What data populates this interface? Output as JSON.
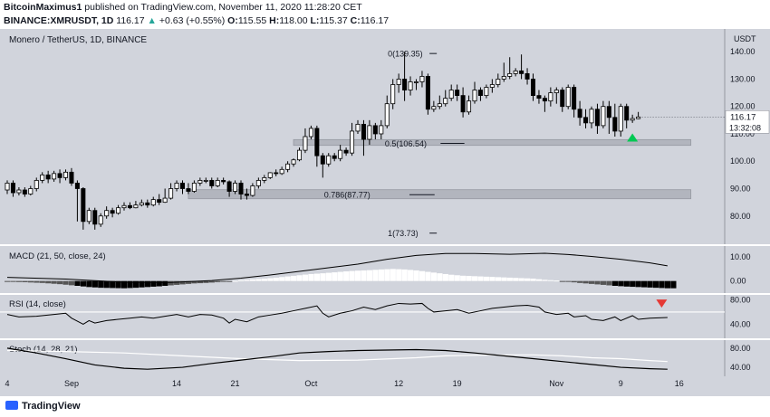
{
  "header": {
    "author": "BitcoinMaximus1",
    "published_text": "published on TradingView.com, November 11, 2020 11:28:20 CET",
    "symbol": "BINANCE:XMRUSDT, 1D",
    "last_price": "116.17",
    "change_arrow": "▲",
    "change_text": "+0.63 (+0.55%)",
    "ohlc": {
      "o_label": "O:",
      "o": "115.55",
      "h_label": "H:",
      "h": "118.00",
      "l_label": "L:",
      "l": "115.37",
      "c_label": "C:",
      "c": "116.17"
    }
  },
  "footer": {
    "brand": "TradingView"
  },
  "colors": {
    "pane_bg": "#d1d4dc",
    "candle_up": "#ffffff",
    "candle_down": "#000000",
    "fib_zone": "#b2b5be",
    "up_arrow": "#00c853",
    "down_arrow": "#e53935"
  },
  "chart_data": {
    "type": "candlestick",
    "title": "Monero / TetherUS, 1D, BINANCE",
    "currency_label": "USDT",
    "price_axis": {
      "ticks": [
        80,
        90,
        100,
        110,
        120,
        130,
        140
      ],
      "ylim": [
        71,
        147
      ]
    },
    "last_price_label": "116.17",
    "countdown_label": "13:32:08",
    "x_tick_labels": [
      {
        "label": "4",
        "index": 0
      },
      {
        "label": "Sep",
        "index": 11
      },
      {
        "label": "14",
        "index": 29
      },
      {
        "label": "21",
        "index": 39
      },
      {
        "label": "Oct",
        "index": 52
      },
      {
        "label": "12",
        "index": 67
      },
      {
        "label": "19",
        "index": 77
      },
      {
        "label": "Nov",
        "index": 94
      },
      {
        "label": "9",
        "index": 105
      },
      {
        "label": "16",
        "index": 115
      }
    ],
    "fib_levels": [
      {
        "label": "0(139.35)",
        "value": 139.35,
        "zone": false,
        "x_start": 67,
        "x_end": 75
      },
      {
        "label": "0.5(106.54)",
        "value": 106.54,
        "zone": true,
        "zone_low": 105.8,
        "zone_high": 107.9,
        "x_start": 49,
        "x_end": 117
      },
      {
        "label": "0.786(87.77)",
        "value": 87.77,
        "zone": true,
        "zone_low": 86.3,
        "zone_high": 89.6,
        "x_start": 31,
        "x_end": 117
      },
      {
        "label": "1(73.73)",
        "value": 73.73,
        "zone": false,
        "x_start": 67,
        "x_end": 75
      }
    ],
    "candles": [
      [
        89.5,
        92,
        88,
        93
      ],
      [
        92,
        88.5,
        87,
        93
      ],
      [
        88.5,
        89.5,
        87.5,
        90.5
      ],
      [
        89.5,
        88,
        87,
        90.5
      ],
      [
        88,
        90,
        87.5,
        91
      ],
      [
        90,
        93,
        89,
        94
      ],
      [
        93,
        95,
        92,
        96
      ],
      [
        95,
        93.5,
        92,
        96.5
      ],
      [
        93.5,
        95.5,
        92.5,
        96.5
      ],
      [
        95.5,
        94,
        92,
        97
      ],
      [
        94,
        96,
        93,
        97
      ],
      [
        96,
        92,
        91,
        97.5
      ],
      [
        92,
        90,
        78,
        93
      ],
      [
        90,
        78,
        75,
        90.5
      ],
      [
        78,
        82,
        77,
        83
      ],
      [
        82,
        77,
        75,
        83
      ],
      [
        77,
        80,
        76,
        81
      ],
      [
        80,
        82,
        79,
        83.5
      ],
      [
        82,
        81,
        79.5,
        83
      ],
      [
        81,
        83,
        80.5,
        84
      ],
      [
        83,
        83.8,
        82,
        85
      ],
      [
        83.8,
        83,
        82.5,
        85
      ],
      [
        83,
        84,
        82.8,
        85.5
      ],
      [
        84,
        84.8,
        83.5,
        86
      ],
      [
        84.8,
        84,
        83,
        86
      ],
      [
        84,
        86,
        83.5,
        87
      ],
      [
        86,
        85,
        84,
        88
      ],
      [
        85,
        86.5,
        84.8,
        90
      ],
      [
        86.5,
        90,
        86,
        92
      ],
      [
        90,
        92,
        89,
        93
      ],
      [
        92,
        90,
        88,
        93
      ],
      [
        90,
        89,
        88,
        92
      ],
      [
        89,
        92,
        88.5,
        93
      ],
      [
        92,
        93,
        91,
        94
      ],
      [
        93,
        93,
        92,
        94
      ],
      [
        93,
        91,
        90,
        94
      ],
      [
        91,
        93,
        90.5,
        94
      ],
      [
        93,
        92.5,
        91.5,
        94
      ],
      [
        92.5,
        89,
        87,
        93
      ],
      [
        89,
        92,
        88,
        93
      ],
      [
        92,
        88,
        86,
        93
      ],
      [
        88,
        87.5,
        86,
        90
      ],
      [
        87.5,
        91,
        87,
        92
      ],
      [
        91,
        93,
        90,
        94
      ],
      [
        93,
        94,
        92,
        95
      ],
      [
        94,
        95.8,
        93.5,
        96
      ],
      [
        95.8,
        95.5,
        94.5,
        97
      ],
      [
        95.5,
        97,
        95,
        98
      ],
      [
        97,
        99,
        96,
        100
      ],
      [
        99,
        100.5,
        98,
        101
      ],
      [
        100.5,
        104,
        100,
        105
      ],
      [
        104,
        109,
        103,
        112
      ],
      [
        109,
        112,
        108,
        113
      ],
      [
        112,
        102,
        98,
        113
      ],
      [
        102,
        99,
        94,
        103
      ],
      [
        99,
        102,
        98,
        103
      ],
      [
        102,
        101,
        100,
        103
      ],
      [
        101,
        104,
        100,
        106
      ],
      [
        104,
        103,
        102,
        105
      ],
      [
        103,
        111,
        102,
        114
      ],
      [
        111,
        113.5,
        110,
        115
      ],
      [
        113.5,
        108,
        102,
        115
      ],
      [
        108,
        113,
        106,
        115
      ],
      [
        113,
        110,
        108,
        114
      ],
      [
        110,
        113,
        108,
        115
      ],
      [
        113,
        121,
        112,
        124
      ],
      [
        121,
        128,
        119,
        130
      ],
      [
        128,
        130,
        125,
        132
      ],
      [
        130,
        126,
        122,
        140
      ],
      [
        126,
        129,
        124,
        131
      ],
      [
        129,
        129,
        126,
        130
      ],
      [
        129,
        131,
        127,
        133
      ],
      [
        131,
        119,
        117,
        132
      ],
      [
        119,
        120,
        118,
        122
      ],
      [
        120,
        121,
        119,
        124
      ],
      [
        121,
        123,
        120,
        126
      ],
      [
        123,
        126,
        122,
        128
      ],
      [
        126,
        124,
        122,
        128
      ],
      [
        124,
        118,
        116,
        127
      ],
      [
        118,
        122,
        117,
        124
      ],
      [
        122,
        126,
        121,
        129
      ],
      [
        126,
        124,
        122,
        127
      ],
      [
        124,
        127,
        123,
        128
      ],
      [
        127,
        128,
        125,
        130
      ],
      [
        128,
        130,
        127,
        132
      ],
      [
        130,
        131,
        129,
        136
      ],
      [
        131,
        132,
        130,
        138
      ],
      [
        132,
        133,
        131,
        134
      ],
      [
        133,
        132,
        130,
        139
      ],
      [
        132,
        130,
        128,
        134
      ],
      [
        130,
        124,
        122,
        132
      ],
      [
        124,
        123,
        121,
        126
      ],
      [
        123,
        122,
        118,
        124
      ],
      [
        122,
        125,
        120,
        127
      ],
      [
        125,
        126,
        121,
        127
      ],
      [
        126,
        120,
        118,
        127
      ],
      [
        120,
        127,
        119,
        128
      ],
      [
        127,
        119,
        116,
        128
      ],
      [
        119,
        116,
        113,
        122
      ],
      [
        116,
        114,
        112,
        119
      ],
      [
        114,
        119,
        112,
        120
      ],
      [
        119,
        113,
        110,
        121
      ],
      [
        113,
        120,
        112,
        122
      ],
      [
        120,
        116,
        110,
        122
      ],
      [
        116,
        111,
        109,
        121
      ],
      [
        111,
        120,
        109,
        121
      ],
      [
        120,
        115,
        112,
        121
      ],
      [
        115,
        115.6,
        114,
        117
      ],
      [
        115.55,
        116.17,
        115.37,
        118
      ]
    ],
    "signal_arrows": [
      {
        "pane": "price",
        "type": "up",
        "index": 107
      },
      {
        "pane": "rsi",
        "type": "down",
        "index": 112
      }
    ],
    "macd": {
      "label": "MACD (21, 50, close, 24)",
      "ticks": [
        0,
        10
      ],
      "ylim": [
        -3.5,
        13
      ],
      "macd_line": [
        [
          0,
          1.5
        ],
        [
          10,
          0.8
        ],
        [
          20,
          -0.5
        ],
        [
          28,
          -0.6
        ],
        [
          35,
          0.2
        ],
        [
          40,
          1.2
        ],
        [
          45,
          2.5
        ],
        [
          50,
          4
        ],
        [
          55,
          5.5
        ],
        [
          60,
          7
        ],
        [
          65,
          9
        ],
        [
          70,
          10.6
        ],
        [
          75,
          11.4
        ],
        [
          80,
          11.4
        ],
        [
          86,
          11.1
        ],
        [
          92,
          11.5
        ],
        [
          96,
          11
        ],
        [
          100,
          10.2
        ],
        [
          105,
          9
        ],
        [
          110,
          7.5
        ],
        [
          113,
          6.3
        ]
      ],
      "histogram": [
        [
          0,
          -0.3
        ],
        [
          3,
          -0.5
        ],
        [
          6,
          -0.8
        ],
        [
          9,
          -1.3
        ],
        [
          12,
          -2
        ],
        [
          14,
          -2.5
        ],
        [
          16,
          -2.8
        ],
        [
          18,
          -2.9
        ],
        [
          20,
          -3
        ],
        [
          22,
          -2.8
        ],
        [
          24,
          -2.5
        ],
        [
          26,
          -2.2
        ],
        [
          28,
          -1.8
        ],
        [
          30,
          -1.4
        ],
        [
          32,
          -1
        ],
        [
          34,
          -0.8
        ],
        [
          36,
          -0.5
        ],
        [
          38,
          -0.2
        ],
        [
          40,
          0.3
        ],
        [
          42,
          0.7
        ],
        [
          44,
          1
        ],
        [
          46,
          1.4
        ],
        [
          48,
          1.9
        ],
        [
          50,
          2.4
        ],
        [
          52,
          2.9
        ],
        [
          54,
          3.2
        ],
        [
          56,
          3.6
        ],
        [
          58,
          4
        ],
        [
          60,
          4.3
        ],
        [
          62,
          4.5
        ],
        [
          64,
          4.8
        ],
        [
          66,
          5
        ],
        [
          68,
          4.8
        ],
        [
          70,
          4.4
        ],
        [
          72,
          3.8
        ],
        [
          74,
          3.2
        ],
        [
          76,
          2.6
        ],
        [
          78,
          2.2
        ],
        [
          80,
          2
        ],
        [
          82,
          1.8
        ],
        [
          84,
          1.6
        ],
        [
          86,
          1.4
        ],
        [
          88,
          1.2
        ],
        [
          90,
          1
        ],
        [
          92,
          0.5
        ],
        [
          94,
          0.2
        ],
        [
          96,
          -0.3
        ],
        [
          98,
          -0.8
        ],
        [
          100,
          -1.2
        ],
        [
          102,
          -1.6
        ],
        [
          104,
          -2
        ],
        [
          106,
          -2.3
        ],
        [
          108,
          -2.5
        ],
        [
          110,
          -2.7
        ],
        [
          112,
          -2.9
        ],
        [
          113,
          -3
        ]
      ]
    },
    "rsi": {
      "label": "RSI (14, close)",
      "ticks": [
        40,
        80
      ],
      "ylim": [
        20,
        85
      ],
      "band_line": 60,
      "values": [
        [
          0,
          56
        ],
        [
          2,
          52
        ],
        [
          5,
          53
        ],
        [
          8,
          56
        ],
        [
          10,
          58
        ],
        [
          11,
          50
        ],
        [
          12,
          45
        ],
        [
          13,
          40
        ],
        [
          14,
          46
        ],
        [
          15,
          42
        ],
        [
          17,
          46
        ],
        [
          19,
          48
        ],
        [
          21,
          50
        ],
        [
          23,
          52
        ],
        [
          25,
          50
        ],
        [
          27,
          53
        ],
        [
          29,
          56
        ],
        [
          31,
          52
        ],
        [
          33,
          56
        ],
        [
          35,
          55
        ],
        [
          37,
          50
        ],
        [
          38,
          42
        ],
        [
          39,
          48
        ],
        [
          41,
          44
        ],
        [
          43,
          52
        ],
        [
          45,
          55
        ],
        [
          47,
          58
        ],
        [
          49,
          62
        ],
        [
          51,
          66
        ],
        [
          53,
          70
        ],
        [
          54,
          58
        ],
        [
          55,
          52
        ],
        [
          57,
          58
        ],
        [
          59,
          62
        ],
        [
          61,
          68
        ],
        [
          63,
          64
        ],
        [
          65,
          70
        ],
        [
          67,
          74
        ],
        [
          69,
          73
        ],
        [
          71,
          74
        ],
        [
          72,
          66
        ],
        [
          73,
          60
        ],
        [
          75,
          62
        ],
        [
          77,
          64
        ],
        [
          79,
          58
        ],
        [
          81,
          62
        ],
        [
          83,
          66
        ],
        [
          85,
          68
        ],
        [
          87,
          70
        ],
        [
          89,
          71
        ],
        [
          91,
          68
        ],
        [
          92,
          60
        ],
        [
          94,
          56
        ],
        [
          96,
          58
        ],
        [
          97,
          52
        ],
        [
          99,
          54
        ],
        [
          100,
          48
        ],
        [
          102,
          46
        ],
        [
          104,
          52
        ],
        [
          105,
          46
        ],
        [
          107,
          54
        ],
        [
          108,
          48
        ],
        [
          110,
          50
        ],
        [
          113,
          51
        ]
      ]
    },
    "stoch": {
      "label": "Stoch (14, 28, 21)",
      "ticks": [
        40,
        80
      ],
      "ylim": [
        25,
        93
      ],
      "k_line": [
        [
          0,
          80
        ],
        [
          5,
          70
        ],
        [
          10,
          58
        ],
        [
          15,
          45
        ],
        [
          20,
          38
        ],
        [
          24,
          36
        ],
        [
          30,
          40
        ],
        [
          35,
          48
        ],
        [
          40,
          55
        ],
        [
          45,
          62
        ],
        [
          50,
          70
        ],
        [
          55,
          73
        ],
        [
          60,
          75
        ],
        [
          65,
          76
        ],
        [
          70,
          77
        ],
        [
          75,
          75
        ],
        [
          80,
          70
        ],
        [
          85,
          64
        ],
        [
          90,
          58
        ],
        [
          95,
          52
        ],
        [
          100,
          46
        ],
        [
          105,
          40
        ],
        [
          110,
          37
        ],
        [
          113,
          36
        ]
      ],
      "d_line": [
        [
          0,
          75
        ],
        [
          10,
          73
        ],
        [
          20,
          70
        ],
        [
          30,
          64
        ],
        [
          40,
          58
        ],
        [
          50,
          54
        ],
        [
          60,
          55
        ],
        [
          70,
          60
        ],
        [
          75,
          64
        ],
        [
          80,
          65
        ],
        [
          85,
          66
        ],
        [
          90,
          66
        ],
        [
          95,
          64
        ],
        [
          100,
          60
        ],
        [
          105,
          58
        ],
        [
          110,
          54
        ],
        [
          113,
          52
        ]
      ]
    }
  }
}
